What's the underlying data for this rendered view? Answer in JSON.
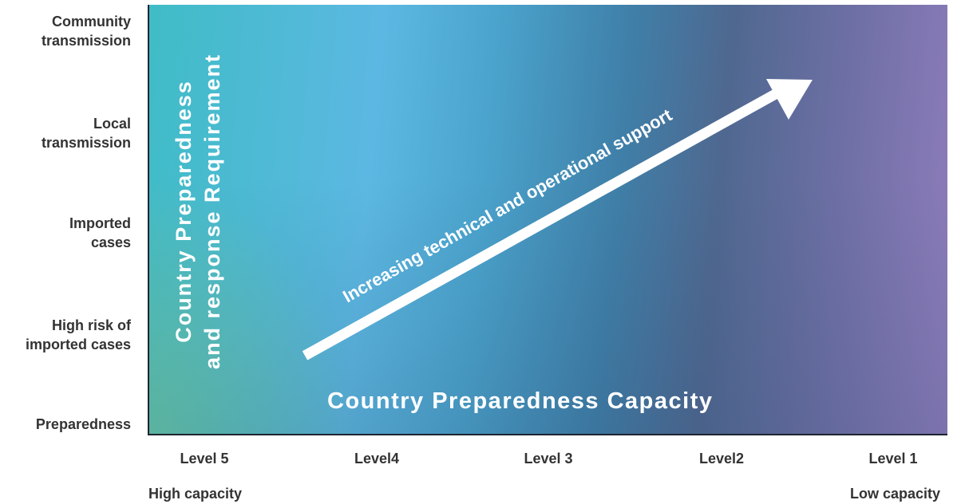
{
  "y_axis": {
    "labels": [
      "Community\ntransmission",
      "Local\ntransmission",
      "Imported\ncases",
      "High risk of\nimported cases",
      "Preparedness"
    ]
  },
  "x_axis": {
    "labels": [
      "Level 5",
      "Level4",
      "Level 3",
      "Level2",
      "Level 1"
    ],
    "left_note": "High capacity",
    "right_note": "Low capacity"
  },
  "vertical_title": {
    "line1": "Country Preparedness",
    "line2": "and response Requirement"
  },
  "horizontal_title": "Country Preparedness Capacity",
  "arrow_label": "Increasing technical and operational support",
  "colors": {
    "teal": "#3fbcc6",
    "sky": "#5cb8e2",
    "slate_blue": "#4f6890",
    "lavender": "#8f7dbb",
    "text": "#333333",
    "arrow": "#ffffff"
  }
}
